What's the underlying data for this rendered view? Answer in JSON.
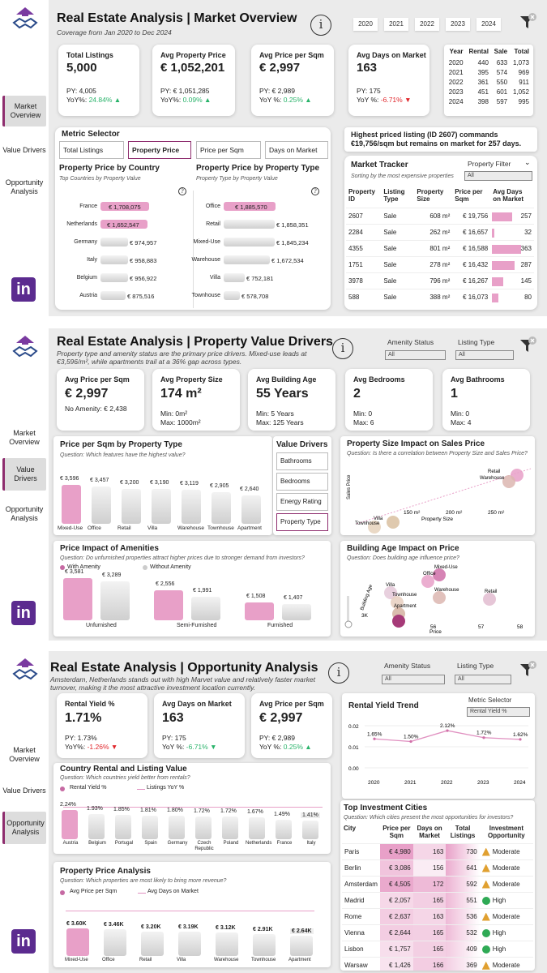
{
  "nav": {
    "market": "Market Overview",
    "value": "Value Drivers",
    "opportunity": "Opportunity Analysis"
  },
  "p1": {
    "title": "Real Estate Analysis | Market Overview",
    "subtitle": "Coverage from Jan 2020 to Dec 2024",
    "years": [
      "2020",
      "2021",
      "2022",
      "2023",
      "2024"
    ],
    "kpis": [
      {
        "t": "Total Listings",
        "v": "5,000",
        "py": "PY: 4,005",
        "yoy_l": "YoY%: ",
        "yoy": "24.84% ▲",
        "up": true
      },
      {
        "t": "Avg Property Price",
        "v": "€ 1,052,201",
        "py": "PY: € 1,051,285",
        "yoy_l": "YoY%: ",
        "yoy": "0.09% ▲",
        "up": true
      },
      {
        "t": "Avg Price per Sqm",
        "v": "€ 2,997",
        "py": "PY: € 2,989",
        "yoy_l": "YoY %: ",
        "yoy": "0.25% ▲",
        "up": true
      },
      {
        "t": "Avg Days on Market",
        "v": "163",
        "py": "PY: 175",
        "yoy_l": "YoY %: ",
        "yoy": "-6.71% ▼",
        "up": false
      }
    ],
    "year_table": {
      "headers": [
        "Year",
        "Rental",
        "Sale",
        "Total"
      ],
      "rows": [
        [
          "2020",
          "440",
          "633",
          "1,073"
        ],
        [
          "2021",
          "395",
          "574",
          "969"
        ],
        [
          "2022",
          "361",
          "550",
          "911"
        ],
        [
          "2023",
          "451",
          "601",
          "1,052"
        ],
        [
          "2024",
          "398",
          "597",
          "995"
        ]
      ]
    },
    "metric_selector": {
      "title": "Metric Selector",
      "options": [
        "Total Listings",
        "Property Price",
        "Price per Sqm",
        "Days on Market"
      ]
    },
    "insight": "Highest priced listing (ID 2607) commands €19,756/sqm but remains on market for 257 days.",
    "by_country": {
      "title": "Property Price by Country",
      "q": "Top Countries by Property Value",
      "rows": [
        [
          "France",
          "€ 1,708,075"
        ],
        [
          "Netherlands",
          "€ 1,652,547"
        ],
        [
          "Germany",
          "€ 974,957"
        ],
        [
          "Italy",
          "€ 958,883"
        ],
        [
          "Belgium",
          "€ 956,922"
        ],
        [
          "Austria",
          "€ 875,516"
        ]
      ]
    },
    "by_type": {
      "title": "Property Price by Property Type",
      "q": "Property Type by Property Value",
      "rows": [
        [
          "Office",
          "€ 1,885,570"
        ],
        [
          "Retail",
          "€ 1,858,351"
        ],
        [
          "Mixed-Use",
          "€ 1,845,234"
        ],
        [
          "Warehouse",
          "€ 1,672,534"
        ],
        [
          "Villa",
          "€ 752,181"
        ],
        [
          "Townhouse",
          "€ 578,708"
        ]
      ]
    },
    "tracker": {
      "title": "Market Tracker",
      "q": "Sorting by the most expensive properties",
      "filter_label": "Property Filter",
      "filter_val": "All",
      "headers": [
        "Property ID",
        "Listing Type",
        "Property Size",
        "Price per Sqm",
        "Avg Days on Market"
      ],
      "rows": [
        [
          "2607",
          "Sale",
          "608 m²",
          "€ 19,756",
          "257"
        ],
        [
          "2284",
          "Sale",
          "262 m²",
          "€ 16,657",
          "32"
        ],
        [
          "4355",
          "Sale",
          "801 m²",
          "€ 16,588",
          "363"
        ],
        [
          "1751",
          "Sale",
          "278 m²",
          "€ 16,432",
          "287"
        ],
        [
          "3978",
          "Sale",
          "796 m²",
          "€ 16,267",
          "145"
        ],
        [
          "588",
          "Sale",
          "388 m²",
          "€ 16,073",
          "80"
        ]
      ]
    }
  },
  "p2": {
    "title": "Real Estate Analysis | Property Value Drivers",
    "subtitle": "Property type and amenity status are the primary price drivers. Mixed-use leads at €3,596/m², while apartments trail at a 36% gap across types.",
    "amenity_label": "Amenity Status",
    "listing_label": "Listing Type",
    "all": "All",
    "kpis": [
      {
        "t": "Avg Price per Sqm",
        "v": "€ 2,997",
        "s1": "No Amenity: € 2,438",
        "s2": ""
      },
      {
        "t": "Avg Property Size",
        "v": "174 m²",
        "s1": "Min: 0m²",
        "s2": "Max: 1000m²"
      },
      {
        "t": "Avg Building Age",
        "v": "55 Years",
        "s1": "Min: 5 Years",
        "s2": "Max: 125 Years"
      },
      {
        "t": "Avg Bedrooms",
        "v": "2",
        "s1": "Min: 0",
        "s2": "Max: 6"
      },
      {
        "t": "Avg Bathrooms",
        "v": "1",
        "s1": "Min: 0",
        "s2": "Max: 4"
      }
    ],
    "ppt": {
      "title": "Price per Sqm by Property Type",
      "q": "Question: Which features have the highest value?",
      "cats": [
        "Mixed-Use",
        "Office",
        "Retail",
        "Villa",
        "Warehouse",
        "Townhouse",
        "Apartment"
      ],
      "labels": [
        "€ 3,596",
        "€ 3,457",
        "€ 3,200",
        "€ 3,190",
        "€ 3,119",
        "€ 2,905",
        "€ 2,640"
      ]
    },
    "drivers": {
      "title": "Value Drivers",
      "options": [
        "Bathrooms",
        "Bedrooms",
        "Energy Rating",
        "Property Type"
      ]
    },
    "size": {
      "title": "Property Size Impact on Sales Price",
      "q": "Question: Is there a correlation between Property Size and Sales Price?",
      "ticks": [
        "150 m²",
        "200 m²",
        "250 m²"
      ],
      "xlabel": "Property Size",
      "ylabel": "Sales Price",
      "pts": [
        "Retail",
        "Warehouse",
        "Villa",
        "Townhouse"
      ]
    },
    "amen": {
      "title": "Price Impact of Amenities",
      "q": "Question: Do unfurnished properties attract higher prices due to stronger demand from investors?",
      "leg": [
        "With Amenity",
        "Without Amenity"
      ],
      "cats": [
        "Unfurnished",
        "Semi-Furnished",
        "Furnished"
      ],
      "with": [
        "€ 3,581",
        "€ 2,556",
        "€ 1,508"
      ],
      "without": [
        "€ 3,289",
        "€ 1,991",
        "€ 1,407"
      ]
    },
    "age": {
      "title": "Building Age Impact on Price",
      "q": "Question: Does building age influence price?",
      "ylabel": "Building Age",
      "xlabel": "Price",
      "ticks": [
        "3K",
        "56",
        "57",
        "58"
      ],
      "pts": [
        "Mixed-Use",
        "Office",
        "Villa",
        "Townhouse",
        "Warehouse",
        "Apartment",
        "Retail"
      ]
    }
  },
  "p3": {
    "title": "Real Estate Analysis | Opportunity Analysis",
    "subtitle": "Amsterdam, Netherlands stands out with high Marvet value and relatively faster market turnover, making it the most attractive investment location currently.",
    "kpis": [
      {
        "t": "Rental Yield %",
        "v": "1.71%",
        "py": "PY: 1.73%",
        "yoy_l": "YoY%: ",
        "yoy": "-1.26% ▼",
        "up": false
      },
      {
        "t": "Avg Days on Market",
        "v": "163",
        "py": "PY: 175",
        "yoy_l": "YoY %: ",
        "yoy": "-6.71% ▼",
        "up": true
      },
      {
        "t": "Avg Price per Sqm",
        "v": "€ 2,997",
        "py": "PY: € 2,989",
        "yoy_l": "YoY %: ",
        "yoy": "0.25% ▲",
        "up": true
      }
    ],
    "trend": {
      "title": "Rental Yield Trend",
      "metric_label": "Metric Selector",
      "metric_val": "Rental Yield %",
      "years": [
        "2020",
        "2021",
        "2022",
        "2023",
        "2024"
      ],
      "labels": [
        "1.65%",
        "1.50%",
        "2.12%",
        "1.72%",
        "1.62%"
      ],
      "ticks": [
        "0.02",
        "0.01",
        "0.00"
      ]
    },
    "country": {
      "title": "Country Rental and Listing Value",
      "q": "Question: Which countries yield better from rentals?",
      "leg": [
        "Rental Yield %",
        "Listings YoY %"
      ],
      "cats": [
        "Austria",
        "Belgium",
        "Portugal",
        "Spain",
        "Germany",
        "Czech Republic",
        "Poland",
        "Netherlands",
        "France",
        "Italy"
      ],
      "labels": [
        "2.24%",
        "1.93%",
        "1.85%",
        "1.81%",
        "1.80%",
        "1.72%",
        "1.72%",
        "1.67%",
        "1.49%",
        "1.41%"
      ]
    },
    "ppa": {
      "title": "Property Price Analysis",
      "q": "Question: Which properties are most likely to bring more revenue?",
      "leg": [
        "Avg Price per Sqm",
        "Avg Days on Market"
      ],
      "cats": [
        "Mixed-Use",
        "Office",
        "Retail",
        "Villa",
        "Warehouse",
        "Townhouse",
        "Apartment"
      ],
      "labels": [
        "€ 3.60K",
        "€ 3.46K",
        "€ 3.20K",
        "€ 3.19K",
        "€ 3.12K",
        "€ 2.91K",
        "€ 2.64K"
      ]
    },
    "cities": {
      "title": "Top Investment Cities",
      "q": "Question: Which cities present the most opportunities for investors?",
      "headers": [
        "City",
        "Price per Sqm",
        "Days on Market",
        "Total Listings",
        "Investment Opportunity"
      ],
      "rows": [
        [
          "Paris",
          "€ 4,980",
          "163",
          "730",
          "Moderate"
        ],
        [
          "Berlin",
          "€ 3,086",
          "156",
          "641",
          "Moderate"
        ],
        [
          "Amsterdam",
          "€ 4,505",
          "172",
          "592",
          "Moderate"
        ],
        [
          "Madrid",
          "€ 2,057",
          "165",
          "551",
          "High"
        ],
        [
          "Rome",
          "€ 2,637",
          "163",
          "536",
          "Moderate"
        ],
        [
          "Vienna",
          "€ 2,644",
          "165",
          "532",
          "High"
        ],
        [
          "Lisbon",
          "€ 1,757",
          "165",
          "409",
          "High"
        ],
        [
          "Warsaw",
          "€ 1,426",
          "166",
          "369",
          "Moderate"
        ]
      ]
    }
  },
  "chart_data": [
    {
      "type": "bar",
      "title": "Property Price by Country",
      "categories": [
        "France",
        "Netherlands",
        "Germany",
        "Italy",
        "Belgium",
        "Austria"
      ],
      "values": [
        1708075,
        1652547,
        974957,
        958883,
        956922,
        875516
      ]
    },
    {
      "type": "bar",
      "title": "Property Price by Property Type",
      "categories": [
        "Office",
        "Retail",
        "Mixed-Use",
        "Warehouse",
        "Villa",
        "Townhouse"
      ],
      "values": [
        1885570,
        1858351,
        1845234,
        1672534,
        752181,
        578708
      ]
    },
    {
      "type": "bar",
      "title": "Price per Sqm by Property Type",
      "categories": [
        "Mixed-Use",
        "Office",
        "Retail",
        "Villa",
        "Warehouse",
        "Townhouse",
        "Apartment"
      ],
      "values": [
        3596,
        3457,
        3200,
        3190,
        3119,
        2905,
        2640
      ]
    },
    {
      "type": "bar",
      "title": "Price Impact of Amenities",
      "categories": [
        "Unfurnished",
        "Semi-Furnished",
        "Furnished"
      ],
      "series": [
        {
          "name": "With Amenity",
          "values": [
            3581,
            2556,
            1508
          ]
        },
        {
          "name": "Without Amenity",
          "values": [
            3289,
            1991,
            1407
          ]
        }
      ]
    },
    {
      "type": "line",
      "title": "Rental Yield Trend",
      "x": [
        "2020",
        "2021",
        "2022",
        "2023",
        "2024"
      ],
      "values": [
        1.65,
        1.5,
        2.12,
        1.72,
        1.62
      ]
    },
    {
      "type": "bar",
      "title": "Country Rental and Listing Value",
      "categories": [
        "Austria",
        "Belgium",
        "Portugal",
        "Spain",
        "Germany",
        "Czech Republic",
        "Poland",
        "Netherlands",
        "France",
        "Italy"
      ],
      "series": [
        {
          "name": "Rental Yield %",
          "values": [
            2.24,
            1.93,
            1.85,
            1.81,
            1.8,
            1.72,
            1.72,
            1.67,
            1.49,
            1.41
          ]
        }
      ]
    },
    {
      "type": "bar",
      "title": "Property Price Analysis",
      "categories": [
        "Mixed-Use",
        "Office",
        "Retail",
        "Villa",
        "Warehouse",
        "Townhouse",
        "Apartment"
      ],
      "series": [
        {
          "name": "Avg Price per Sqm",
          "values": [
            3600,
            3460,
            3200,
            3190,
            3120,
            2910,
            2640
          ]
        }
      ]
    }
  ]
}
